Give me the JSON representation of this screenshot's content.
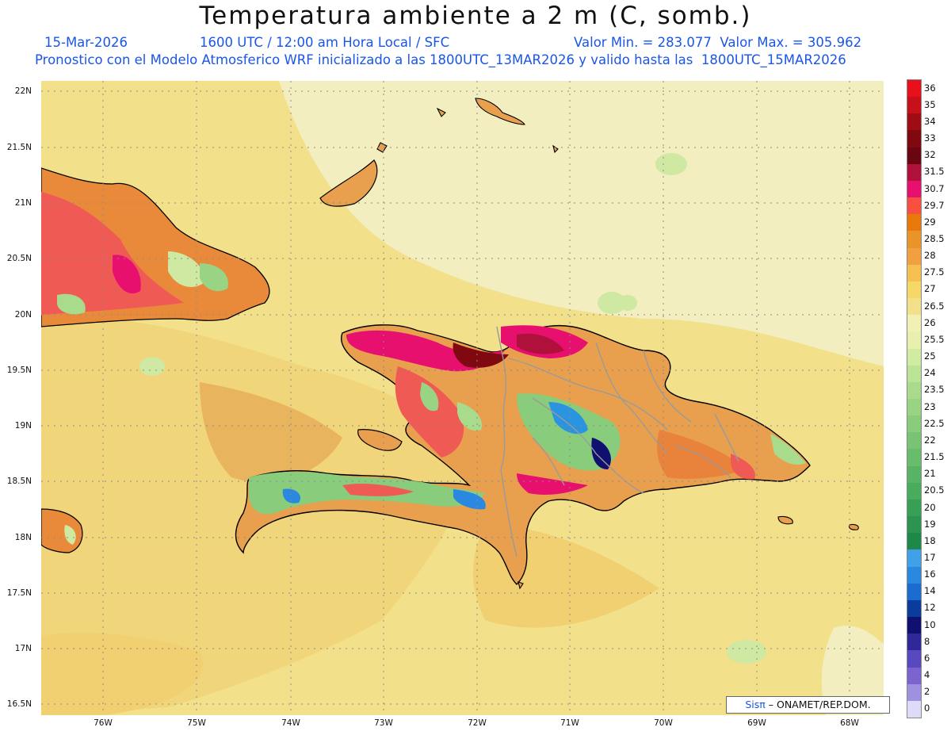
{
  "header": {
    "title": "Temperatura ambiente a 2 m (C, somb.)",
    "date": "15-Mar-2026",
    "time": "1600 UTC / 12:00 am Hora Local / SFC",
    "min_max": "Valor Min. = 283.077  Valor Max. = 305.962",
    "model_line": "Pronostico con el Modelo Atmosferico WRF inicializado a las 1800UTC_13MAR2026 y valido hasta las  1800UTC_15MAR2026"
  },
  "axes": {
    "lat_labels": [
      "22N",
      "21.5N",
      "21N",
      "20.5N",
      "20N",
      "19.5N",
      "19N",
      "18.5N",
      "18N",
      "17.5N",
      "17N",
      "16.5N"
    ],
    "lon_labels": [
      "76W",
      "75W",
      "74W",
      "73W",
      "72W",
      "71W",
      "70W",
      "69W",
      "68W"
    ]
  },
  "legend": {
    "labels": [
      "36",
      "35",
      "34",
      "33",
      "32",
      "31.5",
      "30.7",
      "29.7",
      "29",
      "28.5",
      "28",
      "27.5",
      "27",
      "26.5",
      "26",
      "25.5",
      "25",
      "24",
      "23.5",
      "23",
      "22.5",
      "22",
      "21.5",
      "21",
      "20.5",
      "20",
      "19",
      "18",
      "17",
      "16",
      "14",
      "12",
      "10",
      "8",
      "6",
      "4",
      "2",
      "0"
    ],
    "colors": [
      "#e8101a",
      "#c8101a",
      "#a00c14",
      "#800810",
      "#6a0610",
      "#b0103c",
      "#e8106e",
      "#f85040",
      "#e8780a",
      "#e89428",
      "#f0a040",
      "#f5c050",
      "#f5d868",
      "#f2e08a",
      "#f2f0b4",
      "#e8f0b0",
      "#d0eca0",
      "#bce496",
      "#a8dc8c",
      "#98d484",
      "#88cc7c",
      "#78c474",
      "#68bc6c",
      "#58b464",
      "#48ac5c",
      "#38a054",
      "#2a9450",
      "#1e8848",
      "#40a0e8",
      "#2a88e0",
      "#1a6cd0",
      "#0a3c9c",
      "#101070",
      "#302898",
      "#5a48c0",
      "#7c64d0",
      "#a090e0",
      "#dcdcf8"
    ]
  },
  "credit": {
    "brand": "Sisπ",
    "text": " – ONAMET/REP.DOM."
  }
}
